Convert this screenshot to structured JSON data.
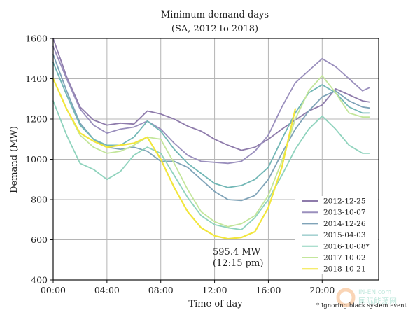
{
  "chart_data": {
    "type": "line",
    "title": "Minimum demand days",
    "subtitle": "(SA,  2012 to 2018)",
    "xlabel": "Time of day",
    "ylabel": "Demand (MW)",
    "xlim": [
      0,
      24.2
    ],
    "ylim": [
      400,
      1600
    ],
    "grid": true,
    "legend_position": "bottom-right",
    "x_ticks": [
      {
        "value": 0,
        "label": "00:00"
      },
      {
        "value": 4,
        "label": "04:00"
      },
      {
        "value": 8,
        "label": "08:00"
      },
      {
        "value": 12,
        "label": "12:00"
      },
      {
        "value": 16,
        "label": "16:00"
      },
      {
        "value": 20,
        "label": "20:00"
      }
    ],
    "y_ticks": [
      {
        "value": 400,
        "label": "400"
      },
      {
        "value": 600,
        "label": "600"
      },
      {
        "value": 800,
        "label": "800"
      },
      {
        "value": 1000,
        "label": "1000"
      },
      {
        "value": 1200,
        "label": "1200"
      },
      {
        "value": 1400,
        "label": "1400"
      },
      {
        "value": 1600,
        "label": "1600"
      }
    ],
    "x": [
      0,
      1,
      2,
      3,
      4,
      5,
      6,
      7,
      8,
      9,
      10,
      11,
      12,
      13,
      14,
      15,
      16,
      17,
      18,
      19,
      20,
      21,
      22,
      23,
      23.5
    ],
    "series": [
      {
        "name": "2012-12-25",
        "color": "#8e7bab",
        "values": [
          1600,
          1410,
          1260,
          1195,
          1170,
          1180,
          1175,
          1240,
          1225,
          1200,
          1165,
          1140,
          1100,
          1070,
          1045,
          1060,
          1100,
          1150,
          1195,
          1240,
          1270,
          1350,
          1320,
          1290,
          1285
        ]
      },
      {
        "name": "2013-10-07",
        "color": "#9a8fbd",
        "values": [
          1560,
          1400,
          1250,
          1170,
          1130,
          1150,
          1160,
          1190,
          1150,
          1080,
          1020,
          990,
          985,
          980,
          990,
          1040,
          1120,
          1260,
          1380,
          1440,
          1500,
          1460,
          1400,
          1340,
          1355
        ]
      },
      {
        "name": "2014-12-26",
        "color": "#7fa3b8",
        "values": [
          1520,
          1340,
          1180,
          1100,
          1060,
          1050,
          1060,
          1040,
          990,
          990,
          960,
          900,
          840,
          800,
          795,
          820,
          900,
          1030,
          1150,
          1240,
          1310,
          1340,
          1290,
          1260,
          1255
        ]
      },
      {
        "name": "2015-04-03",
        "color": "#72b7b6",
        "values": [
          1480,
          1320,
          1170,
          1100,
          1070,
          1070,
          1110,
          1190,
          1140,
          1050,
          980,
          930,
          880,
          860,
          870,
          900,
          960,
          1100,
          1230,
          1330,
          1370,
          1330,
          1260,
          1230,
          1230
        ]
      },
      {
        "name": "2016-10-08*",
        "color": "#8fd3bd",
        "values": [
          1290,
          1120,
          980,
          950,
          900,
          940,
          1020,
          1060,
          1030,
          920,
          810,
          720,
          675,
          660,
          650,
          710,
          800,
          920,
          1050,
          1150,
          1215,
          1150,
          1070,
          1030,
          1030
        ]
      },
      {
        "name": "2017-10-02",
        "color": "#c3e69b",
        "values": [
          1400,
          1250,
          1120,
          1060,
          1030,
          1040,
          1070,
          1110,
          1100,
          980,
          850,
          740,
          690,
          665,
          680,
          720,
          820,
          990,
          1200,
          1340,
          1415,
          1330,
          1230,
          1210,
          1210
        ]
      },
      {
        "name": "2018-10-21",
        "color": "#f2e63c",
        "values": [
          1400,
          1250,
          1130,
          1090,
          1060,
          1070,
          1080,
          1110,
          1000,
          860,
          740,
          660,
          620,
          605,
          612,
          640,
          760,
          960,
          1250,
          null,
          null,
          null,
          null,
          null,
          null
        ]
      }
    ],
    "annotation": {
      "label_line1": "595.4 MW",
      "label_line2": "(12:15 pm)",
      "x": 12.25,
      "y": 595.4
    },
    "footnote": "* Ignoring black system event"
  },
  "watermark": {
    "line1": "IN-EN.com",
    "line2": "国际能源网"
  }
}
